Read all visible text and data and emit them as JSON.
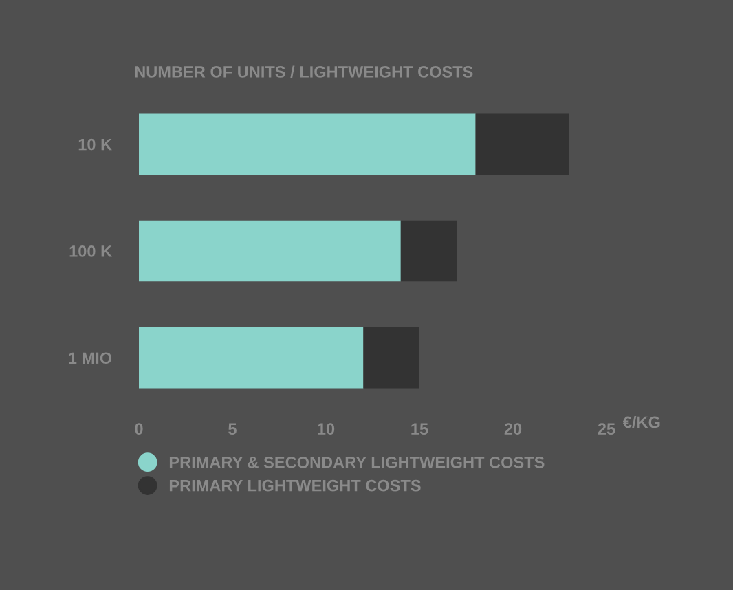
{
  "chart_data": {
    "type": "bar",
    "orientation": "horizontal",
    "stacked": true,
    "title": "NUMBER OF UNITS / LIGHTWEIGHT COSTS",
    "xlabel": "€/KG",
    "categories": [
      "10 K",
      "100 K",
      "1 MIO"
    ],
    "series": [
      {
        "name": "PRIMARY & SECONDARY LIGHTWEIGHT COSTS",
        "color": "#8ad4cb",
        "values": [
          18,
          14,
          12
        ]
      },
      {
        "name": "PRIMARY LIGHTWEIGHT COSTS",
        "color": "#333333",
        "values": [
          5,
          3,
          3
        ]
      }
    ],
    "xlim": [
      0,
      25
    ],
    "xticks": [
      0,
      5,
      10,
      15,
      20,
      25
    ],
    "grid": false,
    "legend": "bottom",
    "marker": "circle"
  }
}
